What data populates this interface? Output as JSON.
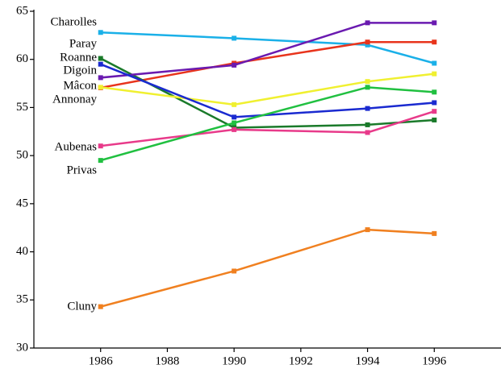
{
  "chart_data": {
    "type": "line",
    "x": [
      1986,
      1990,
      1994,
      1996
    ],
    "xlim": [
      1984,
      1998
    ],
    "xticks": [
      1986,
      1988,
      1990,
      1992,
      1994,
      1996
    ],
    "ylim": [
      30,
      65
    ],
    "yticks": [
      30,
      35,
      40,
      45,
      50,
      55,
      60,
      65
    ],
    "series": [
      {
        "name": "Charolles",
        "color": "#1ab0e8",
        "values": [
          62.8,
          62.2,
          61.5,
          59.6
        ]
      },
      {
        "name": "Paray",
        "color": "#e8341c",
        "values": [
          57.05,
          59.6,
          61.8,
          61.8
        ]
      },
      {
        "name": "Roanne",
        "color": "#1a7a2a",
        "values": [
          60.1,
          52.9,
          53.2,
          53.7
        ]
      },
      {
        "name": "Digoin",
        "color": "#6a1ab0",
        "values": [
          58.1,
          59.4,
          63.8,
          63.8
        ]
      },
      {
        "name": "Mâcon",
        "color": "#f0f030",
        "values": [
          57.1,
          55.3,
          57.7,
          58.5
        ]
      },
      {
        "name": "Annonay",
        "color": "#1a2ad0",
        "values": [
          59.5,
          54.0,
          54.9,
          55.5
        ]
      },
      {
        "name": "Aubenas",
        "color": "#e83a8a",
        "values": [
          51.0,
          52.7,
          52.4,
          54.6
        ]
      },
      {
        "name": "Privas",
        "color": "#20c040",
        "values": [
          49.5,
          53.4,
          57.1,
          56.6
        ]
      },
      {
        "name": "Cluny",
        "color": "#f08020",
        "values": [
          34.3,
          38.0,
          42.3,
          41.9
        ]
      }
    ]
  }
}
